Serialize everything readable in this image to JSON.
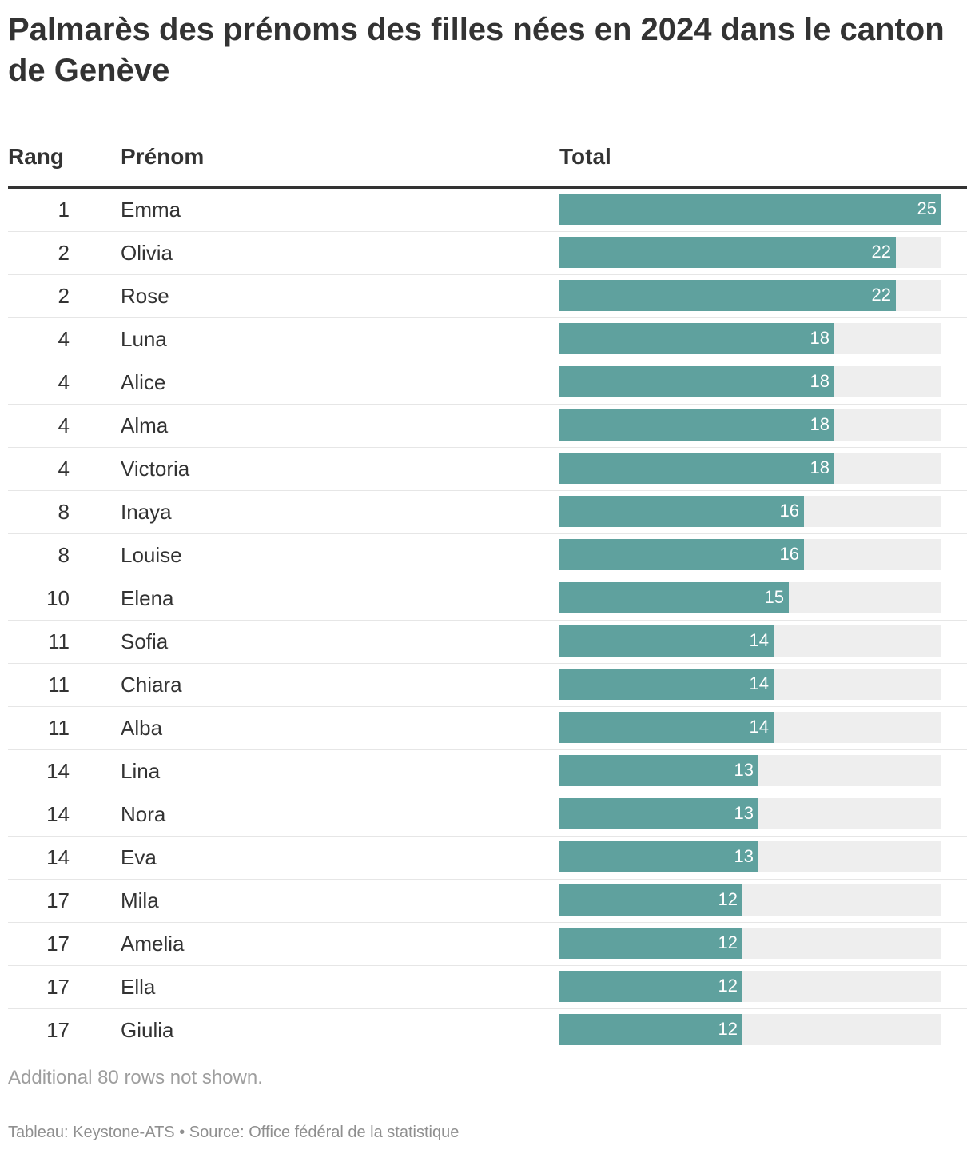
{
  "title": "Palmarès des prénoms des filles nées en 2024 dans le canton de Genève",
  "columns": {
    "rank": "Rang",
    "name": "Prénom",
    "total": "Total"
  },
  "colors": {
    "bar": "#5fa19e",
    "track": "#eeeeee",
    "text": "#333333"
  },
  "chart_data": {
    "type": "table",
    "title": "Palmarès des prénoms des filles nées en 2024 dans le canton de Genève",
    "xlim": [
      0,
      25
    ],
    "rows": [
      {
        "rank": "1",
        "name": "Emma",
        "total": 25
      },
      {
        "rank": "2",
        "name": "Olivia",
        "total": 22
      },
      {
        "rank": "2",
        "name": "Rose",
        "total": 22
      },
      {
        "rank": "4",
        "name": "Luna",
        "total": 18
      },
      {
        "rank": "4",
        "name": "Alice",
        "total": 18
      },
      {
        "rank": "4",
        "name": "Alma",
        "total": 18
      },
      {
        "rank": "4",
        "name": "Victoria",
        "total": 18
      },
      {
        "rank": "8",
        "name": "Inaya",
        "total": 16
      },
      {
        "rank": "8",
        "name": "Louise",
        "total": 16
      },
      {
        "rank": "10",
        "name": "Elena",
        "total": 15
      },
      {
        "rank": "11",
        "name": "Sofia",
        "total": 14
      },
      {
        "rank": "11",
        "name": "Chiara",
        "total": 14
      },
      {
        "rank": "11",
        "name": "Alba",
        "total": 14
      },
      {
        "rank": "14",
        "name": "Lina",
        "total": 13
      },
      {
        "rank": "14",
        "name": "Nora",
        "total": 13
      },
      {
        "rank": "14",
        "name": "Eva",
        "total": 13
      },
      {
        "rank": "17",
        "name": "Mila",
        "total": 12
      },
      {
        "rank": "17",
        "name": "Amelia",
        "total": 12
      },
      {
        "rank": "17",
        "name": "Ella",
        "total": 12
      },
      {
        "rank": "17",
        "name": "Giulia",
        "total": 12
      }
    ]
  },
  "footer": {
    "note": "Additional 80 rows not shown.",
    "credit": "Tableau: Keystone-ATS • Source: Office fédéral de la statistique"
  }
}
